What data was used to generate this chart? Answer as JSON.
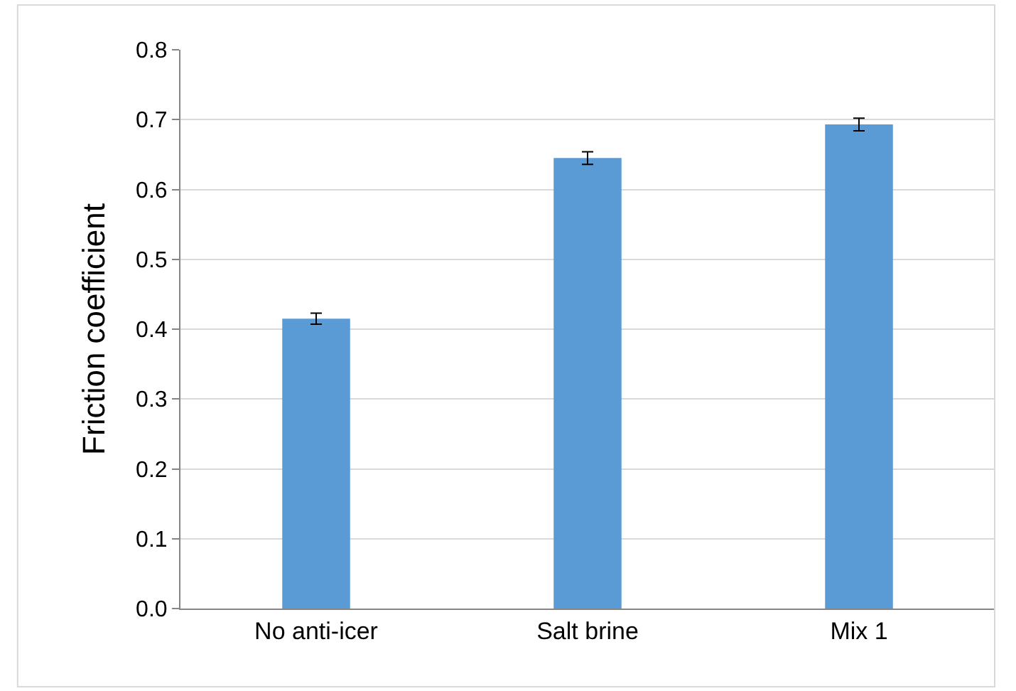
{
  "chart_data": {
    "type": "bar",
    "ylabel": "Friction coefficient",
    "categories": [
      "No anti-icer",
      "Salt brine",
      "Mix 1"
    ],
    "values": [
      0.415,
      0.645,
      0.693
    ],
    "color": "#5b9bd5",
    "errors": [
      0.008,
      0.009,
      0.009
    ],
    "ylim": [
      0,
      0.8
    ],
    "yticks": [
      {
        "value": 0,
        "label": "0.0"
      },
      {
        "value": 0.1,
        "label": "0.1"
      },
      {
        "value": 0.2,
        "label": "0.2"
      },
      {
        "value": 0.3,
        "label": "0.3"
      },
      {
        "value": 0.4,
        "label": "0.4"
      },
      {
        "value": 0.5,
        "label": "0.5"
      },
      {
        "value": 0.6,
        "label": "0.6"
      },
      {
        "value": 0.7,
        "label": "0.7"
      },
      {
        "value": 0.8,
        "label": "0.8"
      }
    ],
    "grid": "y",
    "legend": false
  }
}
